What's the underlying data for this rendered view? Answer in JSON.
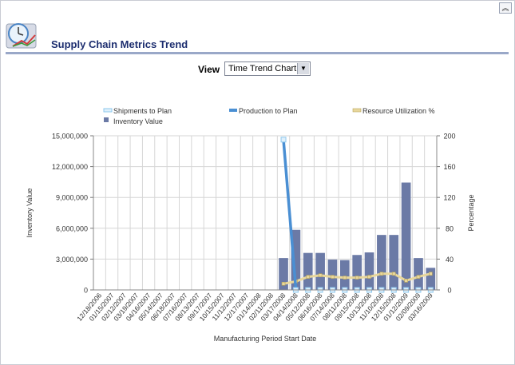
{
  "page": {
    "title": "Supply Chain Metrics Trend",
    "collapse_icon": "double-chevron-up-icon",
    "header_icon": "clock-chart-icon"
  },
  "view": {
    "label": "View",
    "selected": "Time Trend Chart"
  },
  "chart_data": {
    "type": "bar",
    "x": [
      "12/18/2006",
      "01/15/2007",
      "02/12/2007",
      "03/19/2007",
      "04/16/2007",
      "05/14/2007",
      "06/18/2007",
      "07/16/2007",
      "08/13/2007",
      "09/17/2007",
      "10/15/2007",
      "11/12/2007",
      "12/17/2007",
      "01/14/2008",
      "02/11/2008",
      "03/17/2008",
      "04/14/2008",
      "05/12/2008",
      "06/16/2008",
      "07/14/2008",
      "08/11/2008",
      "09/15/2008",
      "10/13/2008",
      "11/10/2008",
      "12/15/2008",
      "01/12/2009",
      "02/09/2009",
      "03/16/2009"
    ],
    "ylabel": "Inventory Value",
    "y2label": "Percentage",
    "xlabel": "Manufacturing Period Start Date",
    "ylim": [
      0,
      15000000
    ],
    "y2lim": [
      0,
      200
    ],
    "yticks": [
      "0",
      "3,000,000",
      "6,000,000",
      "9,000,000",
      "12,000,000",
      "15,000,000"
    ],
    "y2ticks": [
      "0",
      "40",
      "80",
      "120",
      "160",
      "200"
    ],
    "legend": [
      "Shipments to Plan",
      "Production to Plan",
      "Resource Utilization %",
      "Inventory Value"
    ],
    "colors": {
      "inventory": "#6b7aa6",
      "production": "#4a8fd3",
      "shipments": "#8ec8ee",
      "resource": "#e8d79c",
      "grid": "#d6d6d6"
    },
    "series": [
      {
        "name": "Inventory Value",
        "axis": "left",
        "kind": "bar",
        "values": [
          null,
          null,
          null,
          null,
          null,
          null,
          null,
          null,
          null,
          null,
          null,
          null,
          null,
          null,
          null,
          3100000,
          5850000,
          3600000,
          3600000,
          2950000,
          2900000,
          3400000,
          3650000,
          5350000,
          5350000,
          10450000,
          3100000,
          2150000
        ]
      },
      {
        "name": "Production to Plan",
        "axis": "right",
        "kind": "line",
        "values": [
          null,
          null,
          null,
          null,
          null,
          null,
          null,
          null,
          null,
          null,
          null,
          null,
          null,
          null,
          null,
          195,
          3,
          null,
          null,
          null,
          null,
          null,
          null,
          null,
          null,
          null,
          null,
          null
        ]
      },
      {
        "name": "Shipments to Plan",
        "axis": "right",
        "kind": "marker",
        "values": [
          null,
          null,
          null,
          null,
          null,
          null,
          null,
          null,
          null,
          null,
          null,
          null,
          null,
          null,
          null,
          195,
          0,
          0,
          0,
          0,
          0,
          0,
          0,
          0,
          0,
          0,
          0,
          0
        ]
      },
      {
        "name": "Resource Utilization %",
        "axis": "right",
        "kind": "line",
        "values": [
          null,
          null,
          null,
          null,
          null,
          null,
          null,
          null,
          null,
          null,
          null,
          null,
          null,
          null,
          null,
          8,
          11,
          17,
          19,
          17,
          16,
          16,
          17,
          21,
          21,
          12,
          17,
          21
        ]
      }
    ]
  }
}
